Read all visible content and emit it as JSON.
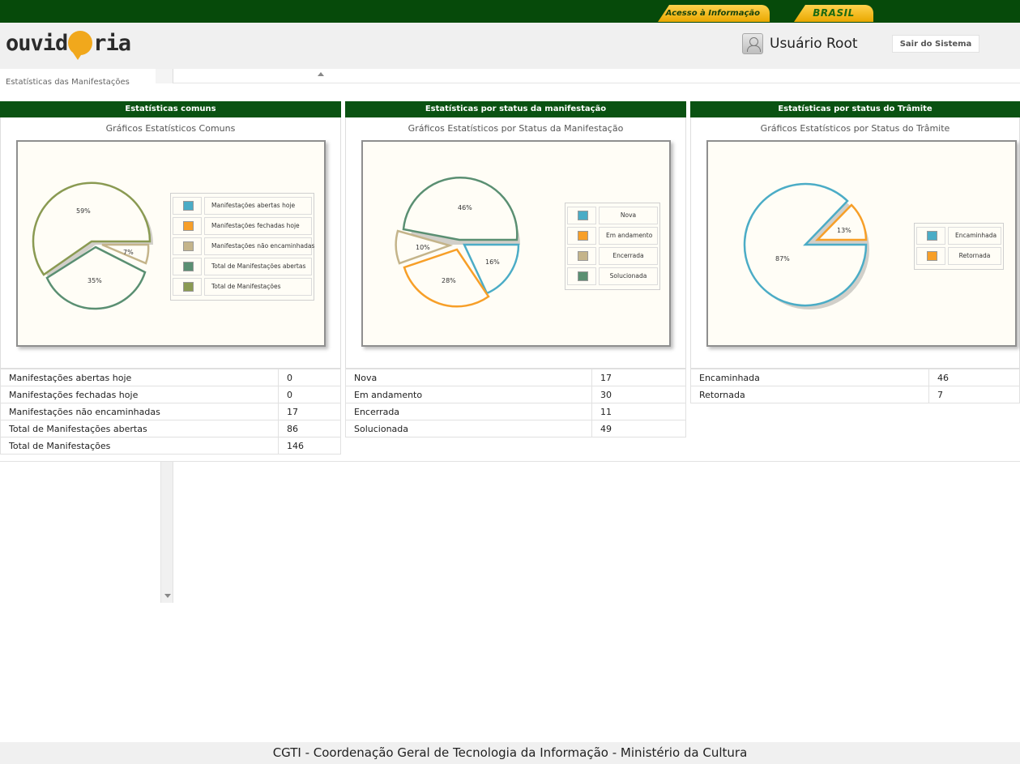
{
  "gov_bar": {
    "access_label": "Acesso à Informação",
    "brasil_label": "BRASIL"
  },
  "header": {
    "logo": "ouvidoria",
    "user": "Usuário Root",
    "logout": "Sair do Sistema"
  },
  "tab": {
    "label": "Estatísticas das Manifestações"
  },
  "panels": [
    {
      "heading": "Estatísticas comuns",
      "chart_title": "Gráficos Estatísticos Comuns",
      "rows": [
        {
          "label": "Manifestações abertas hoje",
          "value": "0"
        },
        {
          "label": "Manifestações fechadas hoje",
          "value": "0"
        },
        {
          "label": "Manifestações não encaminhadas",
          "value": "17"
        },
        {
          "label": "Total de Manifestações abertas",
          "value": "86"
        },
        {
          "label": "Total de Manifestações",
          "value": "146"
        }
      ]
    },
    {
      "heading": "Estatísticas por status da manifestação",
      "chart_title": "Gráficos Estatísticos por Status da Manifestação",
      "rows": [
        {
          "label": "Nova",
          "value": "17"
        },
        {
          "label": "Em andamento",
          "value": "30"
        },
        {
          "label": "Encerrada",
          "value": "11"
        },
        {
          "label": "Solucionada",
          "value": "49"
        }
      ]
    },
    {
      "heading": "Estatísticas por status do Trâmite",
      "chart_title": "Gráficos Estatísticos por Status do Trâmite",
      "rows": [
        {
          "label": "Encaminhada",
          "value": "46"
        },
        {
          "label": "Retornada",
          "value": "7"
        }
      ]
    }
  ],
  "chart_data": [
    {
      "type": "pie",
      "title": "Gráficos Estatísticos Comuns",
      "legend": [
        "Manifestações abertas hoje",
        "Manifestações fechadas hoje",
        "Manifestações não encaminhadas",
        "Total de Manifestações abertas",
        "Total de Manifestações"
      ],
      "colors": [
        "#4bacc6",
        "#f79f28",
        "#c4b48a",
        "#5a8f72",
        "#8a9a52"
      ],
      "slices": [
        {
          "label": "Manifestações não encaminhadas",
          "percent": 7,
          "text": "7%"
        },
        {
          "label": "Total de Manifestações abertas",
          "percent": 35,
          "text": "35%"
        },
        {
          "label": "Total de Manifestações",
          "percent": 59,
          "text": "59%"
        }
      ]
    },
    {
      "type": "pie",
      "title": "Gráficos Estatísticos por Status da Manifestação",
      "legend": [
        "Nova",
        "Em andamento",
        "Encerrada",
        "Solucionada"
      ],
      "colors": [
        "#4bacc6",
        "#f79f28",
        "#c4b48a",
        "#5a8f72"
      ],
      "slices": [
        {
          "label": "Nova",
          "percent": 16,
          "text": "16%"
        },
        {
          "label": "Em andamento",
          "percent": 28,
          "text": "28%"
        },
        {
          "label": "Encerrada",
          "percent": 10,
          "text": "10%"
        },
        {
          "label": "Solucionada",
          "percent": 46,
          "text": "46%"
        }
      ]
    },
    {
      "type": "pie",
      "title": "Gráficos Estatísticos por Status do Trâmite",
      "legend": [
        "Encaminhada",
        "Retornada"
      ],
      "colors": [
        "#4bacc6",
        "#f79f28"
      ],
      "slices": [
        {
          "label": "Retornada",
          "percent": 13,
          "text": "13%"
        },
        {
          "label": "Encaminhada",
          "percent": 87,
          "text": "87%"
        }
      ]
    }
  ],
  "footer": "CGTI - Coordenação Geral de Tecnologia da Informação - Ministério da Cultura"
}
